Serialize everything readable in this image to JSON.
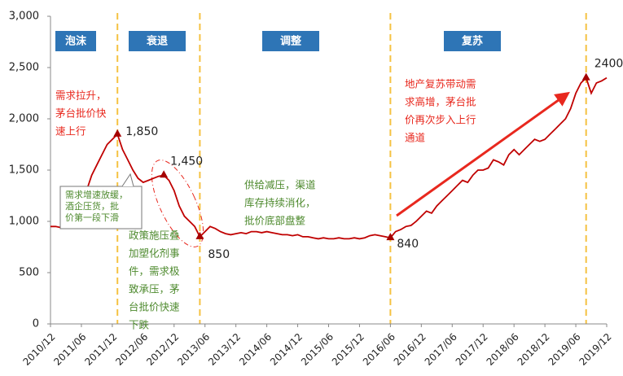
{
  "chart_data": {
    "type": "line",
    "color": "#c00000",
    "x": [
      "2010/12",
      "2011/01",
      "2011/02",
      "2011/03",
      "2011/04",
      "2011/05",
      "2011/06",
      "2011/07",
      "2011/08",
      "2011/09",
      "2011/10",
      "2011/11",
      "2011/12",
      "2012/01",
      "2012/02",
      "2012/03",
      "2012/04",
      "2012/05",
      "2012/06",
      "2012/07",
      "2012/08",
      "2012/09",
      "2012/10",
      "2012/11",
      "2012/12",
      "2013/01",
      "2013/02",
      "2013/03",
      "2013/04",
      "2013/05",
      "2013/06",
      "2013/07",
      "2013/08",
      "2013/09",
      "2013/10",
      "2013/11",
      "2013/12",
      "2014/01",
      "2014/02",
      "2014/03",
      "2014/04",
      "2014/05",
      "2014/06",
      "2014/07",
      "2014/08",
      "2014/09",
      "2014/10",
      "2014/11",
      "2014/12",
      "2015/01",
      "2015/02",
      "2015/03",
      "2015/04",
      "2015/05",
      "2015/06",
      "2015/07",
      "2015/08",
      "2015/09",
      "2015/10",
      "2015/11",
      "2015/12",
      "2016/01",
      "2016/02",
      "2016/03",
      "2016/04",
      "2016/05",
      "2016/06",
      "2016/07",
      "2016/08",
      "2016/09",
      "2016/10",
      "2016/11",
      "2016/12",
      "2017/01",
      "2017/02",
      "2017/03",
      "2017/04",
      "2017/05",
      "2017/06",
      "2017/07",
      "2017/08",
      "2017/09",
      "2017/10",
      "2017/11",
      "2017/12",
      "2018/01",
      "2018/02",
      "2018/03",
      "2018/04",
      "2018/05",
      "2018/06",
      "2018/07",
      "2018/08",
      "2018/09",
      "2018/10",
      "2018/11",
      "2018/12",
      "2019/01",
      "2019/02",
      "2019/03",
      "2019/04",
      "2019/05",
      "2019/06",
      "2019/07",
      "2019/08",
      "2019/09",
      "2019/10",
      "2019/11",
      "2019/12"
    ],
    "values": [
      950,
      950,
      940,
      960,
      1000,
      1100,
      1200,
      1300,
      1450,
      1550,
      1650,
      1750,
      1800,
      1850,
      1700,
      1600,
      1500,
      1420,
      1380,
      1400,
      1420,
      1440,
      1450,
      1400,
      1300,
      1150,
      1050,
      1000,
      950,
      850,
      900,
      950,
      930,
      900,
      880,
      870,
      880,
      890,
      880,
      900,
      900,
      890,
      900,
      890,
      880,
      870,
      870,
      860,
      870,
      850,
      850,
      840,
      830,
      840,
      830,
      830,
      840,
      830,
      830,
      840,
      830,
      840,
      860,
      870,
      860,
      850,
      840,
      900,
      920,
      950,
      960,
      1000,
      1050,
      1100,
      1080,
      1150,
      1200,
      1250,
      1300,
      1350,
      1400,
      1380,
      1450,
      1500,
      1500,
      1520,
      1600,
      1580,
      1550,
      1650,
      1700,
      1650,
      1700,
      1750,
      1800,
      1780,
      1800,
      1850,
      1900,
      1950,
      2000,
      2100,
      2250,
      2350,
      2400,
      2250,
      2350,
      2370,
      2400
    ],
    "xticks": [
      "2010/12",
      "2011/06",
      "2011/12",
      "2012/06",
      "2012/12",
      "2013/06",
      "2013/12",
      "2014/06",
      "2014/12",
      "2015/06",
      "2015/12",
      "2016/06",
      "2016/12",
      "2017/06",
      "2017/12",
      "2018/06",
      "2018/12",
      "2019/06",
      "2019/12"
    ],
    "ylim": [
      0,
      3000
    ],
    "yticks": [
      0,
      500,
      {
        "value": 1000,
        "label": "1,000"
      },
      {
        "value": 1500,
        "label": "1,500"
      },
      {
        "value": 2000,
        "label": "2,000"
      },
      {
        "value": 2500,
        "label": "2,500"
      },
      {
        "value": 3000,
        "label": "3,000"
      }
    ],
    "phase_boundaries": [
      "2012/01",
      "2013/05",
      "2016/06",
      "2019/08"
    ],
    "phases": [
      "泡沫",
      "衰退",
      "调整",
      "复苏"
    ],
    "point_labels": [
      {
        "x": "2012/01",
        "label": "1,850"
      },
      {
        "x": "2012/10",
        "label": "1,450"
      },
      {
        "x": "2013/05",
        "label": "850"
      },
      {
        "x": "2016/06",
        "label": "840"
      },
      {
        "x": "2019/08",
        "label": "2400"
      }
    ],
    "annotations": [
      {
        "lines": [
          "需求拉升，",
          "茅台批价快",
          "速上行"
        ]
      },
      {
        "lines": [
          "需求增速放缓，",
          "酒企压货，批",
          "价第一段下滑"
        ]
      },
      {
        "lines": [
          "政策施压叠",
          "加塑化剂事",
          "件，需求极",
          "致承压，茅",
          "台批价快速",
          "下跌"
        ]
      },
      {
        "lines": [
          "供给减压，渠道",
          "库存持续消化，",
          "批价底部盘整"
        ]
      },
      {
        "lines": [
          "地产复苏带动需",
          "求高增，茅台批",
          "价再次步入上行",
          "通道"
        ]
      }
    ]
  }
}
